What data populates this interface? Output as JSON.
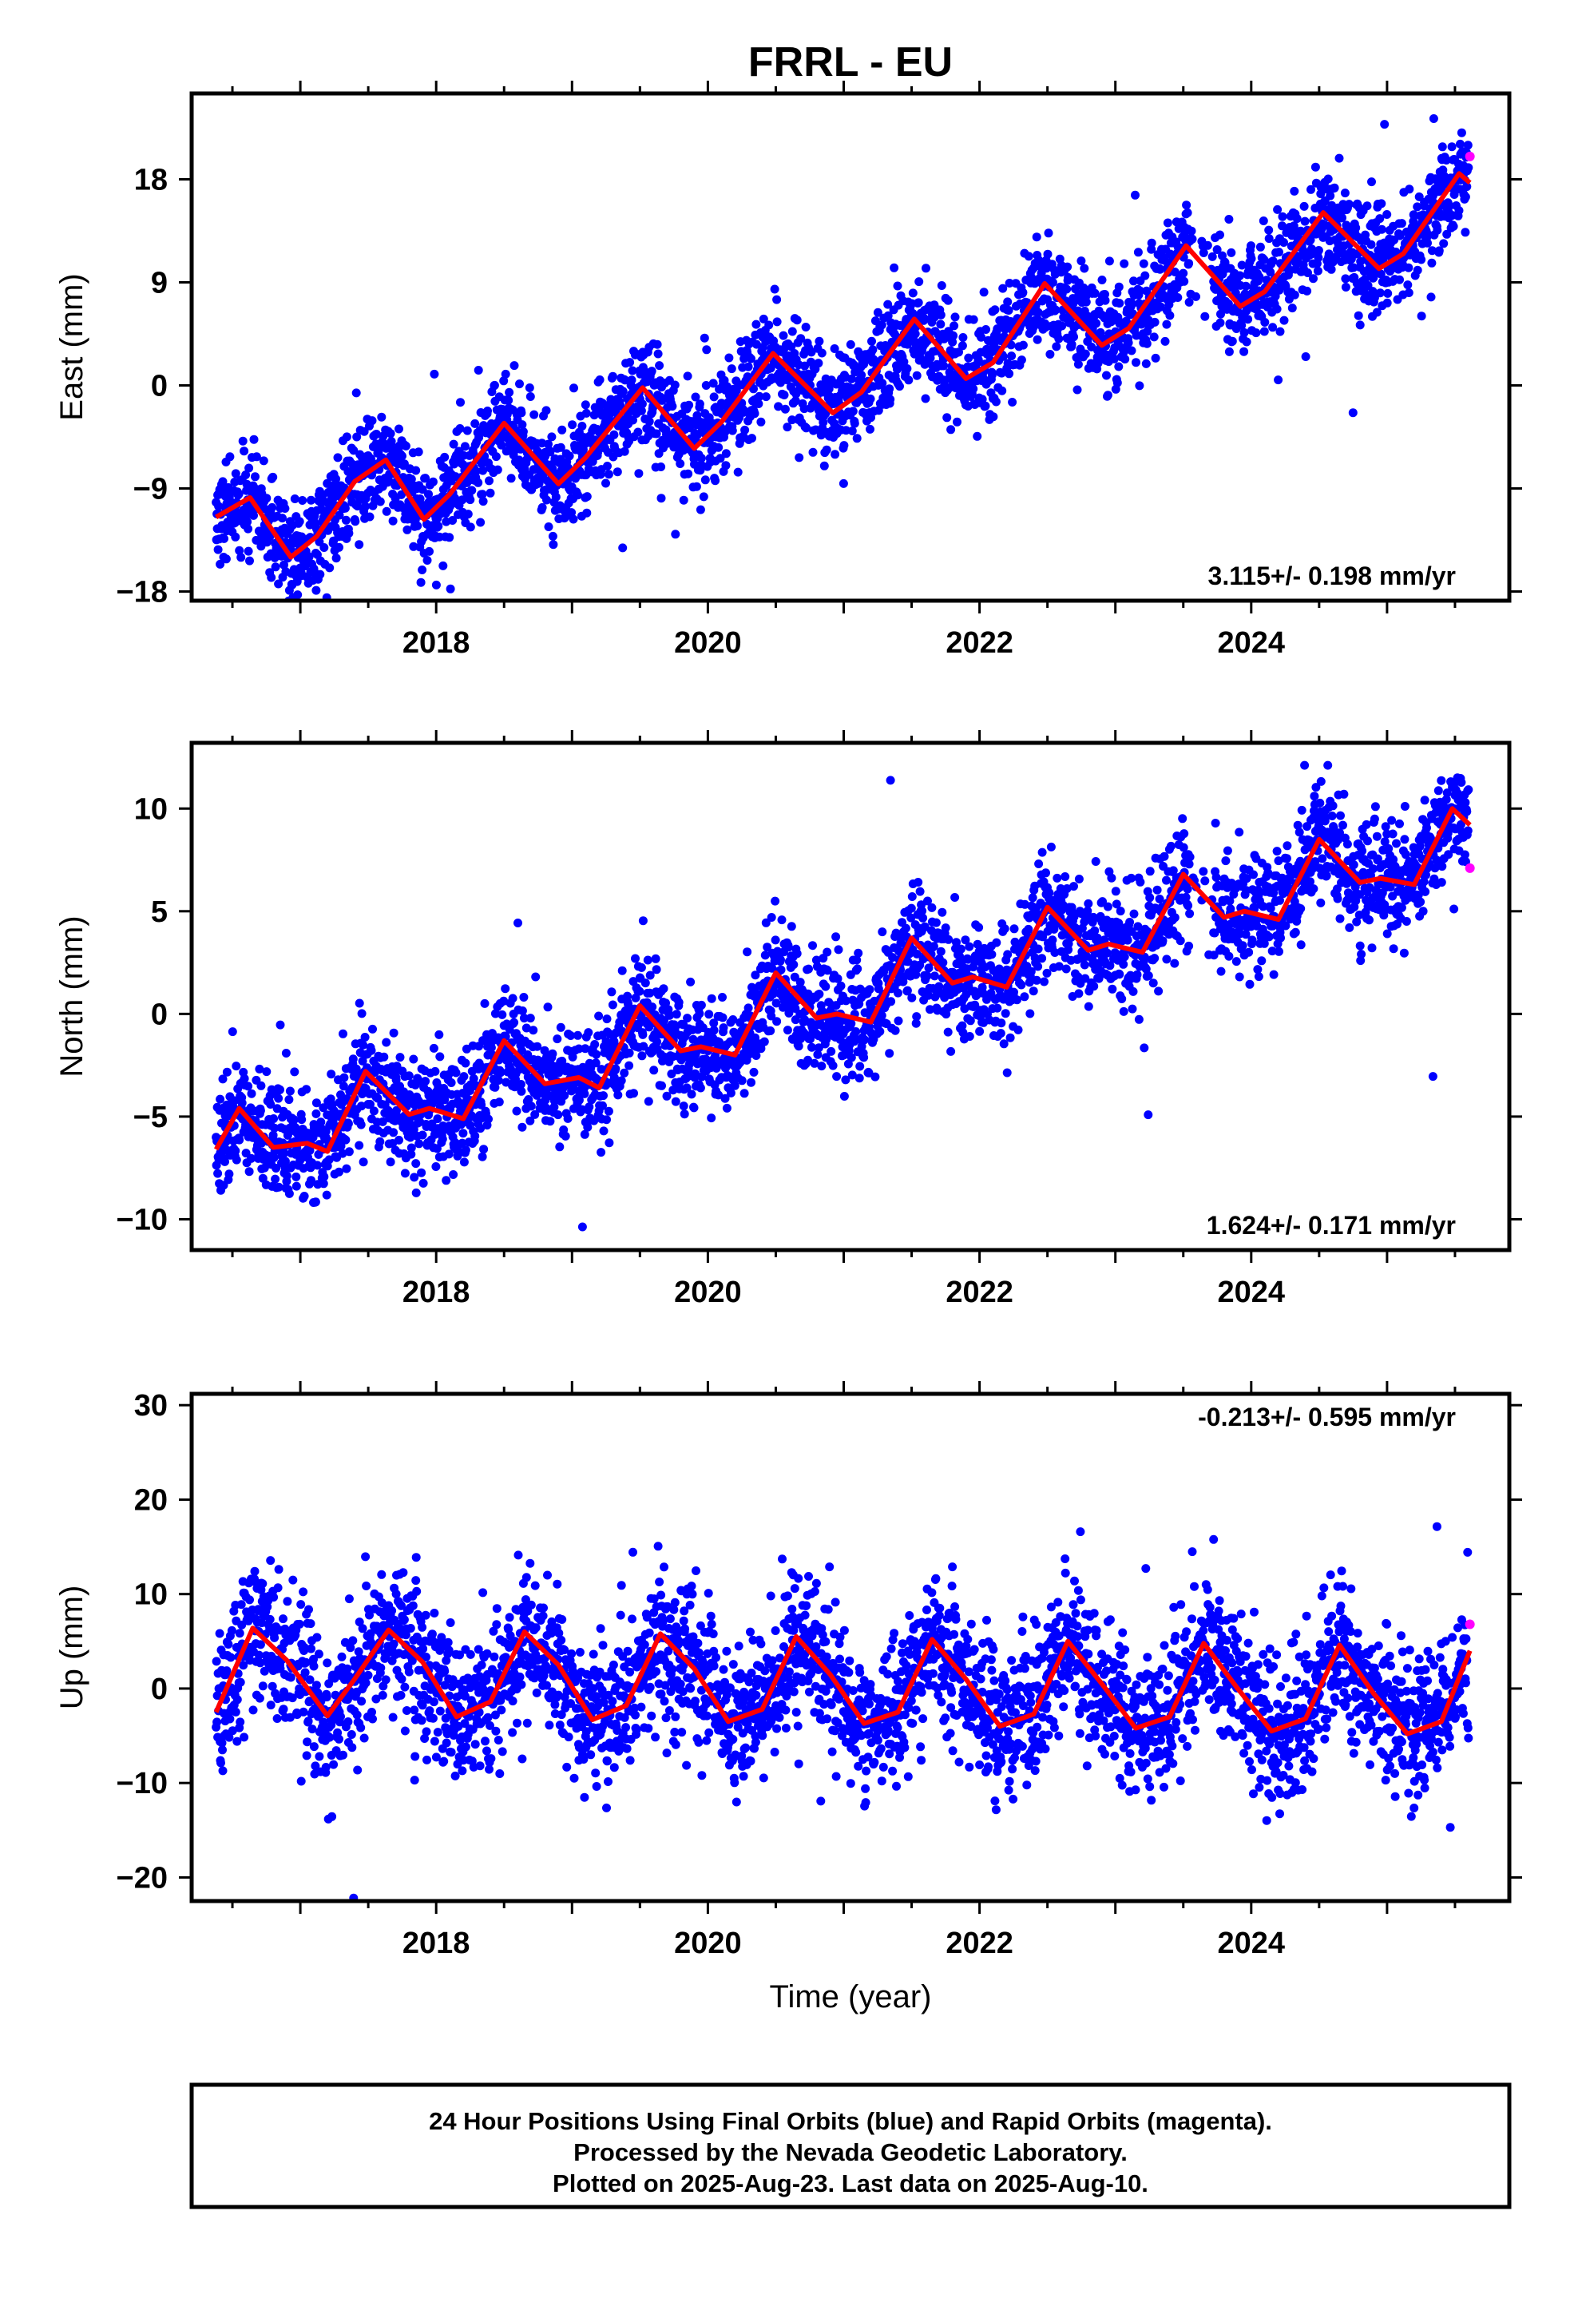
{
  "title": "FRRL - EU",
  "colors": {
    "final": "#0000ff",
    "rapid": "#ff00ff",
    "model": "#ff0000",
    "frame": "#000000"
  },
  "xlabel": "Time (year)",
  "footer": {
    "line1": "24 Hour Positions Using Final Orbits (blue) and Rapid Orbits (magenta).",
    "line2": "Processed by the Nevada Geodetic Laboratory.",
    "line3": "Plotted on 2025-Aug-23. Last data on 2025-Aug-10."
  },
  "chart_data": [
    {
      "type": "scatter",
      "component": "east",
      "ylabel": "East (mm)",
      "xlim": [
        2016.2,
        2025.9
      ],
      "ylim": [
        -18.8,
        25.5
      ],
      "yticks": [
        -18,
        -9,
        0,
        9,
        18
      ],
      "xticks": [
        2018,
        2020,
        2022,
        2024
      ],
      "rate_text": "3.115+/- 0.198 mm/yr",
      "rate_position": "bottom-right",
      "data_range": [
        2016.38,
        2025.61
      ],
      "model": {
        "label": "fit",
        "x": [
          2016.38,
          2016.63,
          2016.93,
          2017.12,
          2017.4,
          2017.63,
          2017.91,
          2018.1,
          2018.5,
          2018.9,
          2019.1,
          2019.52,
          2019.9,
          2020.1,
          2020.48,
          2020.92,
          2021.13,
          2021.52,
          2021.9,
          2022.1,
          2022.48,
          2022.9,
          2023.1,
          2023.52,
          2023.92,
          2024.1,
          2024.53,
          2024.94,
          2025.12,
          2025.53,
          2025.61
        ],
        "y": [
          -11.5,
          -9.8,
          -15.0,
          -13.2,
          -8.4,
          -6.5,
          -11.7,
          -9.5,
          -3.3,
          -8.6,
          -6.3,
          -0.2,
          -5.5,
          -3.2,
          2.8,
          -2.4,
          -0.6,
          5.8,
          0.6,
          2.0,
          8.9,
          3.5,
          5.0,
          12.2,
          6.9,
          8.2,
          15.1,
          10.2,
          11.5,
          18.5,
          17.7
        ]
      },
      "series": [
        {
          "name": "Final Orbits",
          "role": "final",
          "size": "approximately 3100 daily points between 2016.4 and 2025.6 scattered about the fit, spread about 2.5 mm"
        },
        {
          "name": "Rapid Orbits",
          "role": "rapid",
          "x": [
            2025.61
          ],
          "y": [
            20.0
          ]
        }
      ],
      "grid": false
    },
    {
      "type": "scatter",
      "component": "north",
      "ylabel": "North (mm)",
      "xlim": [
        2016.2,
        2025.9
      ],
      "ylim": [
        -11.5,
        13.2
      ],
      "yticks": [
        -10,
        -5,
        0,
        5,
        10
      ],
      "xticks": [
        2018,
        2020,
        2022,
        2024
      ],
      "rate_text": "1.624+/- 0.171 mm/yr",
      "rate_position": "bottom-right",
      "data_range": [
        2016.38,
        2025.61
      ],
      "model": {
        "label": "fit",
        "x": [
          2016.38,
          2016.55,
          2016.8,
          2017.05,
          2017.2,
          2017.48,
          2017.8,
          2017.95,
          2018.2,
          2018.5,
          2018.8,
          2019.05,
          2019.2,
          2019.5,
          2019.8,
          2019.95,
          2020.2,
          2020.5,
          2020.8,
          2020.95,
          2021.2,
          2021.5,
          2021.8,
          2021.95,
          2022.2,
          2022.5,
          2022.8,
          2022.95,
          2023.2,
          2023.5,
          2023.8,
          2023.95,
          2024.2,
          2024.5,
          2024.8,
          2024.95,
          2025.2,
          2025.48,
          2025.61
        ],
        "y": [
          -6.6,
          -4.6,
          -6.5,
          -6.3,
          -6.7,
          -2.8,
          -4.9,
          -4.6,
          -5.1,
          -1.3,
          -3.4,
          -3.1,
          -3.6,
          0.4,
          -1.8,
          -1.6,
          -2.0,
          2.0,
          -0.2,
          0.0,
          -0.4,
          3.7,
          1.5,
          1.8,
          1.3,
          5.2,
          3.1,
          3.4,
          3.0,
          6.8,
          4.7,
          5.0,
          4.6,
          8.5,
          6.4,
          6.6,
          6.3,
          10.0,
          9.2
        ]
      },
      "series": [
        {
          "name": "Final Orbits",
          "role": "final",
          "size": "approximately 3100 daily points between 2016.4 and 2025.6 scattered about the fit, spread about 1.5 mm"
        },
        {
          "name": "Rapid Orbits",
          "role": "rapid",
          "x": [
            2025.61
          ],
          "y": [
            7.1
          ]
        }
      ],
      "grid": false
    },
    {
      "type": "scatter",
      "component": "up",
      "ylabel": "Up (mm)",
      "xlim": [
        2016.2,
        2025.9
      ],
      "ylim": [
        -22.5,
        31.2
      ],
      "yticks": [
        -20,
        -10,
        0,
        10,
        20,
        30
      ],
      "xticks": [
        2018,
        2020,
        2022,
        2024
      ],
      "rate_text": "-0.213+/- 0.595 mm/yr",
      "rate_position": "top-right",
      "data_range": [
        2016.38,
        2025.61
      ],
      "model": {
        "label": "fit",
        "x": [
          2016.38,
          2016.65,
          2016.9,
          2017.2,
          2017.4,
          2017.65,
          2017.9,
          2018.15,
          2018.4,
          2018.65,
          2018.9,
          2019.15,
          2019.4,
          2019.65,
          2019.9,
          2020.15,
          2020.4,
          2020.65,
          2020.9,
          2021.15,
          2021.4,
          2021.65,
          2021.9,
          2022.15,
          2022.4,
          2022.65,
          2022.9,
          2023.15,
          2023.4,
          2023.65,
          2023.9,
          2024.15,
          2024.4,
          2024.65,
          2024.9,
          2025.15,
          2025.4,
          2025.61
        ],
        "y": [
          -2.5,
          6.4,
          3.0,
          -2.9,
          1.0,
          6.2,
          2.8,
          -3.0,
          -1.4,
          6.0,
          2.5,
          -3.3,
          -1.8,
          5.8,
          2.1,
          -3.5,
          -2.2,
          5.5,
          1.5,
          -3.7,
          -2.5,
          5.2,
          1.0,
          -4.0,
          -2.7,
          5.0,
          0.5,
          -4.2,
          -3.0,
          4.8,
          0.0,
          -4.5,
          -3.2,
          4.6,
          -0.5,
          -4.8,
          -3.5,
          4.0
        ]
      },
      "series": [
        {
          "name": "Final Orbits",
          "role": "final",
          "size": "approximately 3100 daily points between 2016.4 and 2025.6 scattered about the fit, spread about 4 mm"
        },
        {
          "name": "Rapid Orbits",
          "role": "rapid",
          "x": [
            2025.61
          ],
          "y": [
            6.8
          ]
        }
      ],
      "grid": false
    }
  ]
}
